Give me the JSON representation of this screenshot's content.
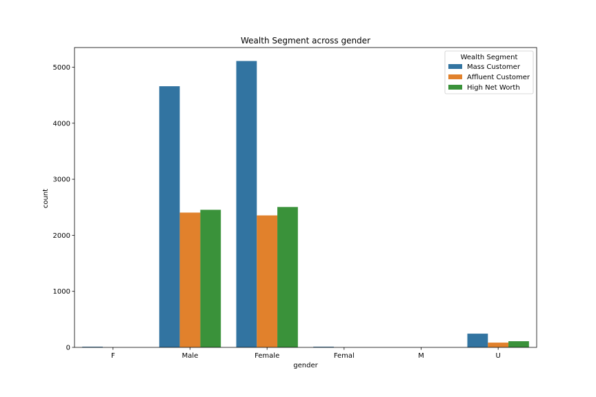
{
  "chart_data": {
    "type": "bar",
    "title": "Wealth Segment across gender",
    "xlabel": "gender",
    "ylabel": "count",
    "categories": [
      "F",
      "Male",
      "Female",
      "Femal",
      "M",
      "U"
    ],
    "ylim": [
      0,
      5350
    ],
    "yticks": [
      0,
      1000,
      2000,
      3000,
      4000,
      5000
    ],
    "grid": false,
    "legend": {
      "title": "Wealth Segment",
      "placement": "top-right"
    },
    "series": [
      {
        "name": "Mass Customer",
        "color": "#3274a1",
        "values": [
          12,
          4660,
          5110,
          12,
          0,
          245
        ]
      },
      {
        "name": "Affluent Customer",
        "color": "#e1812c",
        "values": [
          0,
          2405,
          2355,
          0,
          0,
          85
        ]
      },
      {
        "name": "High Net Worth",
        "color": "#3a923a",
        "values": [
          0,
          2455,
          2505,
          0,
          0,
          110
        ]
      }
    ]
  }
}
